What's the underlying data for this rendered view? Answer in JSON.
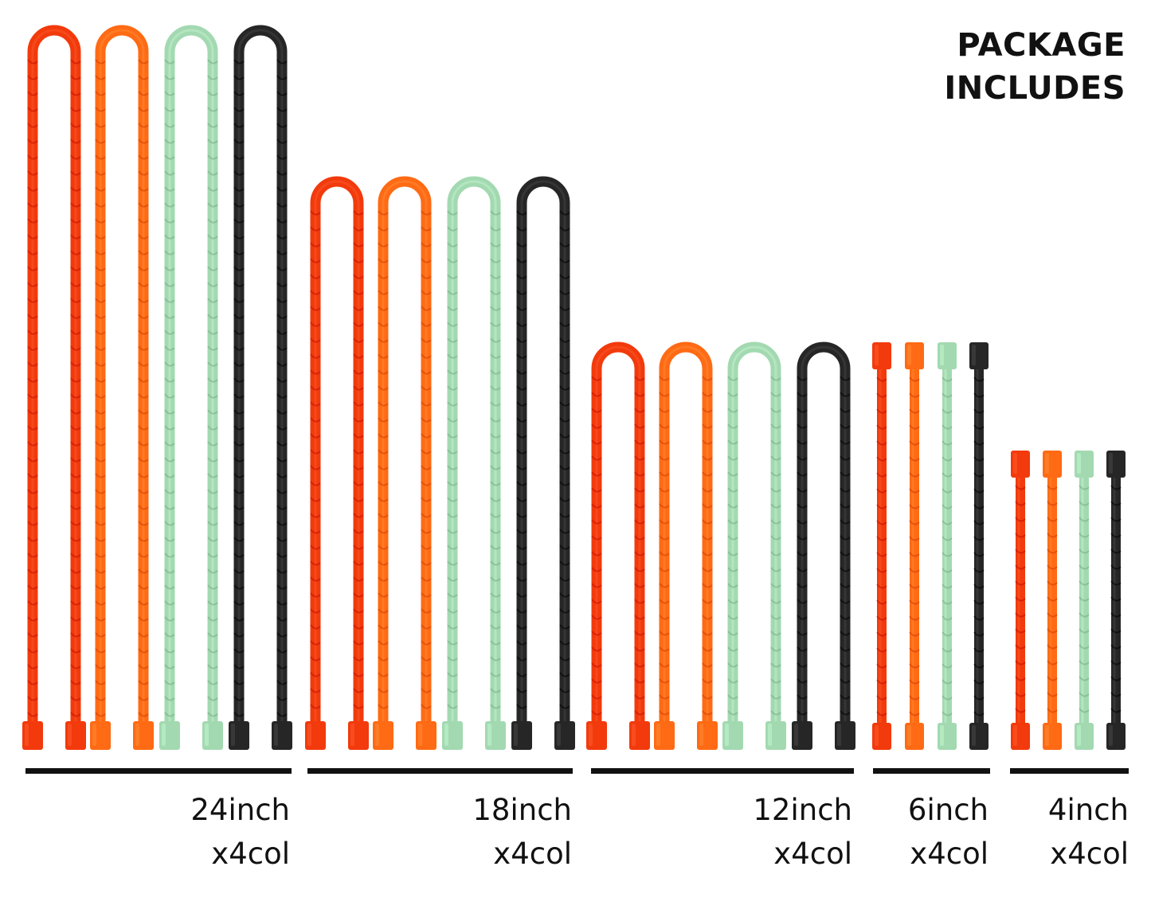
{
  "title": {
    "line1": "PACKAGE",
    "line2": "INCLUDES"
  },
  "colors": {
    "red": "#f23a0c",
    "orange": "#ff6a14",
    "mint": "#a3d9b1",
    "black": "#262626"
  },
  "tie_color_order": [
    "red",
    "orange",
    "mint",
    "black"
  ],
  "groups": [
    {
      "size": "24inch",
      "count": "x4col",
      "style": "loop",
      "length_in": 24
    },
    {
      "size": "18inch",
      "count": "x4col",
      "style": "loop",
      "length_in": 18
    },
    {
      "size": "12inch",
      "count": "x4col",
      "style": "loop",
      "length_in": 12
    },
    {
      "size": "6inch",
      "count": "x4col",
      "style": "straight",
      "length_in": 6
    },
    {
      "size": "4inch",
      "count": "x4col",
      "style": "straight",
      "length_in": 4
    }
  ]
}
